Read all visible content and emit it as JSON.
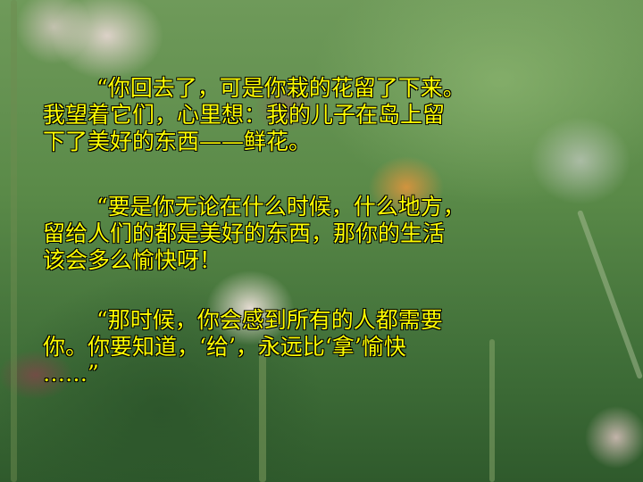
{
  "slide": {
    "paragraphs": [
      {
        "lines": [
          "“你回去了，可是你栽的花留了下来。",
          "我望着它们，心里想：我的儿子在岛上留",
          "下了美好的东西——鲜花。"
        ]
      },
      {
        "lines": [
          "“要是你无论在什么时候，什么地方，",
          "留给人们的都是美好的东西，那你的生活",
          "该会多么愉快呀！"
        ]
      },
      {
        "lines": [
          "“那时候，你会感到所有的人都需要",
          "你。你要知道，‘给’，永远比‘拿’愉快",
          "……”"
        ]
      }
    ]
  },
  "colors": {
    "text": "#ffff00",
    "text_outline": "#000000"
  },
  "background": {
    "icon": "flower-photo-background"
  }
}
